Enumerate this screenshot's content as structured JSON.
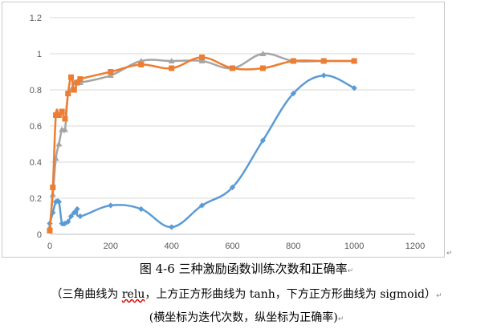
{
  "chart_data": {
    "type": "line",
    "xlim": [
      0,
      1200
    ],
    "ylim": [
      0,
      1.2
    ],
    "x_ticks": [
      0,
      200,
      400,
      600,
      800,
      1000,
      1200
    ],
    "y_ticks": [
      0,
      0.2,
      0.4,
      0.6,
      0.8,
      1,
      1.2
    ],
    "x_tick_labels": [
      "0",
      "200",
      "400",
      "600",
      "800",
      "1000",
      "1200"
    ],
    "y_tick_labels": [
      "0",
      "0.2",
      "0.4",
      "0.6",
      "0.8",
      "1",
      "1.2"
    ],
    "grid": "horizontal",
    "legend": "none",
    "series": [
      {
        "color": "#5b9bd5",
        "marker": "diamond",
        "points": [
          [
            0,
            0.06
          ],
          [
            10,
            0.12
          ],
          [
            20,
            0.18
          ],
          [
            30,
            0.18
          ],
          [
            40,
            0.06
          ],
          [
            50,
            0.06
          ],
          [
            60,
            0.07
          ],
          [
            70,
            0.1
          ],
          [
            80,
            0.12
          ],
          [
            90,
            0.14
          ],
          [
            100,
            0.1
          ],
          [
            200,
            0.16
          ],
          [
            300,
            0.14
          ],
          [
            400,
            0.04
          ],
          [
            500,
            0.16
          ],
          [
            600,
            0.26
          ],
          [
            700,
            0.52
          ],
          [
            800,
            0.78
          ],
          [
            900,
            0.88
          ],
          [
            1000,
            0.81
          ]
        ]
      },
      {
        "color": "#a5a5a5",
        "marker": "triangle",
        "points": [
          [
            0,
            0.04
          ],
          [
            10,
            0.22
          ],
          [
            20,
            0.42
          ],
          [
            30,
            0.5
          ],
          [
            40,
            0.58
          ],
          [
            50,
            0.58
          ],
          [
            60,
            0.78
          ],
          [
            70,
            0.8
          ],
          [
            80,
            0.84
          ],
          [
            90,
            0.84
          ],
          [
            100,
            0.84
          ],
          [
            200,
            0.88
          ],
          [
            300,
            0.96
          ],
          [
            400,
            0.96
          ],
          [
            500,
            0.96
          ],
          [
            600,
            0.92
          ],
          [
            700,
            1.0
          ],
          [
            800,
            0.96
          ],
          [
            900,
            0.96
          ],
          [
            1000,
            0.96
          ]
        ]
      },
      {
        "color": "#ed7d31",
        "marker": "square",
        "points": [
          [
            0,
            0.02
          ],
          [
            10,
            0.26
          ],
          [
            20,
            0.66
          ],
          [
            30,
            0.66
          ],
          [
            40,
            0.68
          ],
          [
            50,
            0.64
          ],
          [
            60,
            0.78
          ],
          [
            70,
            0.87
          ],
          [
            80,
            0.8
          ],
          [
            90,
            0.84
          ],
          [
            100,
            0.86
          ],
          [
            200,
            0.9
          ],
          [
            300,
            0.94
          ],
          [
            400,
            0.92
          ],
          [
            500,
            0.98
          ],
          [
            600,
            0.92
          ],
          [
            700,
            0.92
          ],
          [
            800,
            0.96
          ],
          [
            900,
            0.96
          ],
          [
            1000,
            0.96
          ]
        ]
      }
    ]
  },
  "caption": {
    "figure": "图 4-6  三种激励函数训练次数和正确率",
    "line2_pre": "（三角曲线为 ",
    "line2_relu": "relu",
    "line2_post": "，上方正方形曲线为 tanh，下方正方形曲线为 sigmoid）",
    "line3": "(横坐标为迭代次数，纵坐标为正确率)"
  },
  "marks": {
    "paragraph": "↵",
    "small": "↵"
  },
  "colors": {
    "grid": "#d9d9d9",
    "axis": "#bfbfbf",
    "frame": "#c9c9c9"
  }
}
